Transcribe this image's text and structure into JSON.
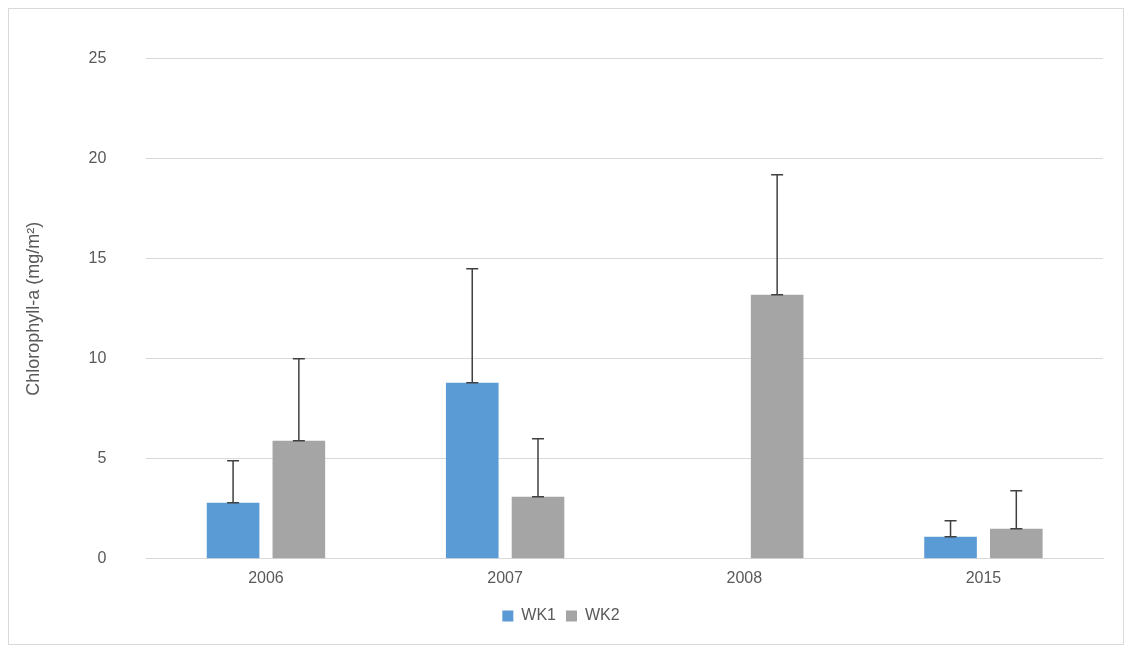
{
  "chart_data": {
    "type": "bar",
    "ylabel": "Chlorophyll-a (mg/m²)",
    "categories": [
      "2006",
      "2007",
      "2008",
      "2015"
    ],
    "series": [
      {
        "name": "WK1",
        "color": "#5b9bd5",
        "values": [
          2.8,
          8.8,
          null,
          1.1
        ],
        "errors": [
          [
            2.8,
            4.9
          ],
          [
            8.8,
            14.5
          ],
          null,
          [
            1.1,
            1.9
          ]
        ]
      },
      {
        "name": "WK2",
        "color": "#a5a5a5",
        "values": [
          5.9,
          3.1,
          13.2,
          1.5
        ],
        "errors": [
          [
            5.9,
            10.0
          ],
          [
            3.1,
            6.0
          ],
          [
            13.2,
            19.2
          ],
          [
            1.5,
            3.4
          ]
        ]
      }
    ],
    "ylim": [
      0,
      25
    ],
    "yticks": [
      0,
      5,
      10,
      15,
      20,
      25
    ],
    "grid": "y",
    "legend": "bottom"
  }
}
